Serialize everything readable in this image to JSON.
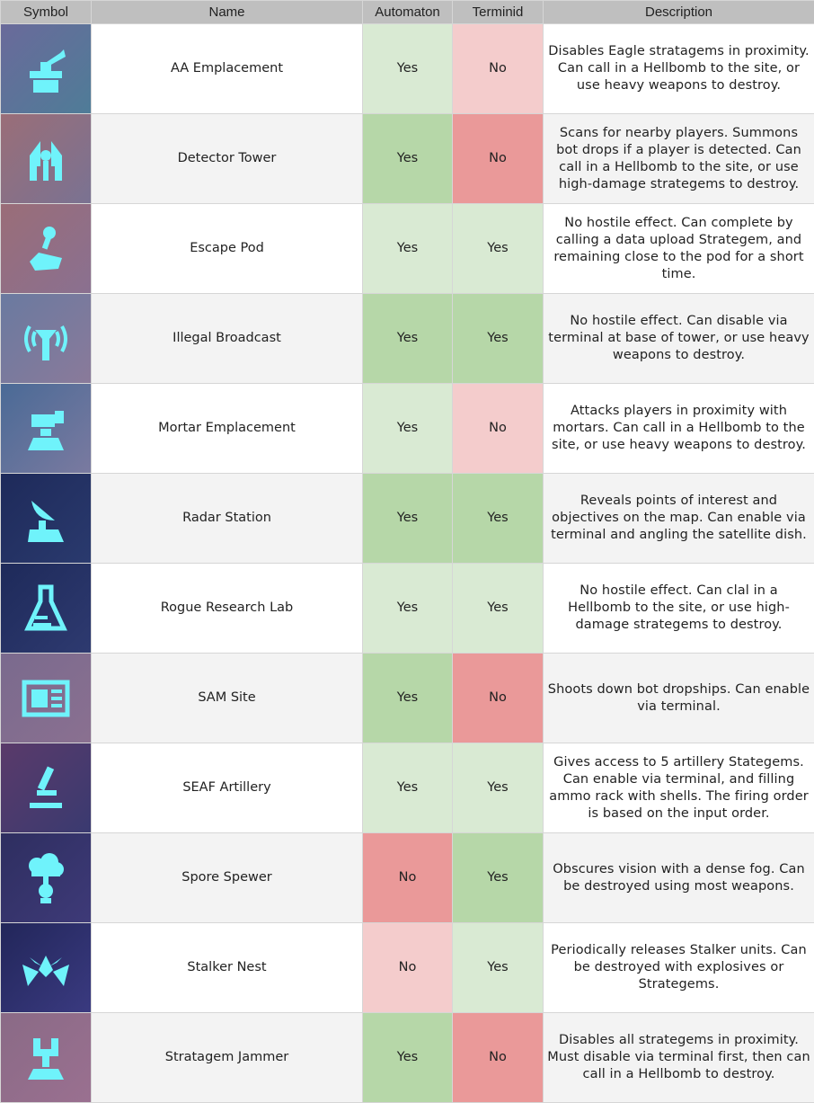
{
  "headers": {
    "symbol": "Symbol",
    "name": "Name",
    "automaton": "Automaton",
    "terminid": "Terminid",
    "description": "Description"
  },
  "colors": {
    "yes_light": "#d9ead3",
    "yes_dark": "#b6d7a8",
    "no_light": "#f4cccc",
    "no_dark": "#ea9999",
    "icon": "#6ff3fb",
    "header": "#bfbfbf"
  },
  "rows": [
    {
      "icon": "aa-emplacement-icon",
      "bg": [
        "#6a6a9a",
        "#4f7c98"
      ],
      "name": "AA Emplacement",
      "automaton": "Yes",
      "terminid": "No",
      "description": "Disables Eagle stratagems in proximity. Can call in a Hellbomb to the site, or use heavy weapons to destroy."
    },
    {
      "icon": "detector-tower-icon",
      "bg": [
        "#9a6e78",
        "#7a7292"
      ],
      "name": "Detector Tower",
      "automaton": "Yes",
      "terminid": "No",
      "description": "Scans for nearby players. Summons bot drops if a player is detected. Can call in a Hellbomb to the site, or use high-damage strategems to destroy."
    },
    {
      "icon": "escape-pod-icon",
      "bg": [
        "#9a6d78",
        "#8a7090"
      ],
      "name": "Escape Pod",
      "automaton": "Yes",
      "terminid": "Yes",
      "description": "No hostile effect. Can complete by calling a data upload Strategem, and remaining close to the pod for a short time."
    },
    {
      "icon": "illegal-broadcast-icon",
      "bg": [
        "#6a7aa0",
        "#8a7a9a"
      ],
      "name": "Illegal Broadcast",
      "automaton": "Yes",
      "terminid": "Yes",
      "description": "No hostile effect. Can disable via terminal at base of tower, or use heavy weapons to destroy."
    },
    {
      "icon": "mortar-emplacement-icon",
      "bg": [
        "#4a6a96",
        "#7a7aa0"
      ],
      "name": "Mortar Emplacement",
      "automaton": "Yes",
      "terminid": "No",
      "description": "Attacks players in proximity with mortars. Can call in a Hellbomb to the site, or use heavy weapons to destroy."
    },
    {
      "icon": "radar-station-icon",
      "bg": [
        "#1e2a5a",
        "#2a3a6e"
      ],
      "name": "Radar Station",
      "automaton": "Yes",
      "terminid": "Yes",
      "description": "Reveals points of interest and objectives on the map. Can enable via terminal and angling the satellite dish."
    },
    {
      "icon": "rogue-research-lab-icon",
      "bg": [
        "#1e2a5a",
        "#2e3a70"
      ],
      "name": "Rogue Research Lab",
      "automaton": "Yes",
      "terminid": "Yes",
      "description": "No hostile effect. Can clal in a Hellbomb to the site, or use high-damage strategems to destroy."
    },
    {
      "icon": "sam-site-icon",
      "bg": [
        "#7a6a8e",
        "#8a7090"
      ],
      "name": "SAM Site",
      "automaton": "Yes",
      "terminid": "No",
      "description": "Shoots down bot dropships. Can enable via terminal."
    },
    {
      "icon": "seaf-artillery-icon",
      "bg": [
        "#5a3a6a",
        "#3a3a70"
      ],
      "name": "SEAF Artillery",
      "automaton": "Yes",
      "terminid": "Yes",
      "description": "Gives access to 5 artillery Stategems. Can enable via terminal, and filling ammo rack with shells. The firing order is based on the input order."
    },
    {
      "icon": "spore-spewer-icon",
      "bg": [
        "#2e2e60",
        "#3e3a78"
      ],
      "name": "Spore Spewer",
      "automaton": "No",
      "terminid": "Yes",
      "description": "Obscures vision with a dense fog. Can be destroyed using most weapons."
    },
    {
      "icon": "stalker-nest-icon",
      "bg": [
        "#22265a",
        "#3a3a80"
      ],
      "name": "Stalker Nest",
      "automaton": "No",
      "terminid": "Yes",
      "description": "Periodically releases Stalker units. Can be destroyed with explosives or Strategems."
    },
    {
      "icon": "stratagem-jammer-icon",
      "bg": [
        "#8a6a86",
        "#9a7090"
      ],
      "name": "Stratagem Jammer",
      "automaton": "Yes",
      "terminid": "No",
      "description": "Disables all strategems in proximity. Must disable via terminal first, then can call in a Hellbomb to destroy."
    }
  ]
}
